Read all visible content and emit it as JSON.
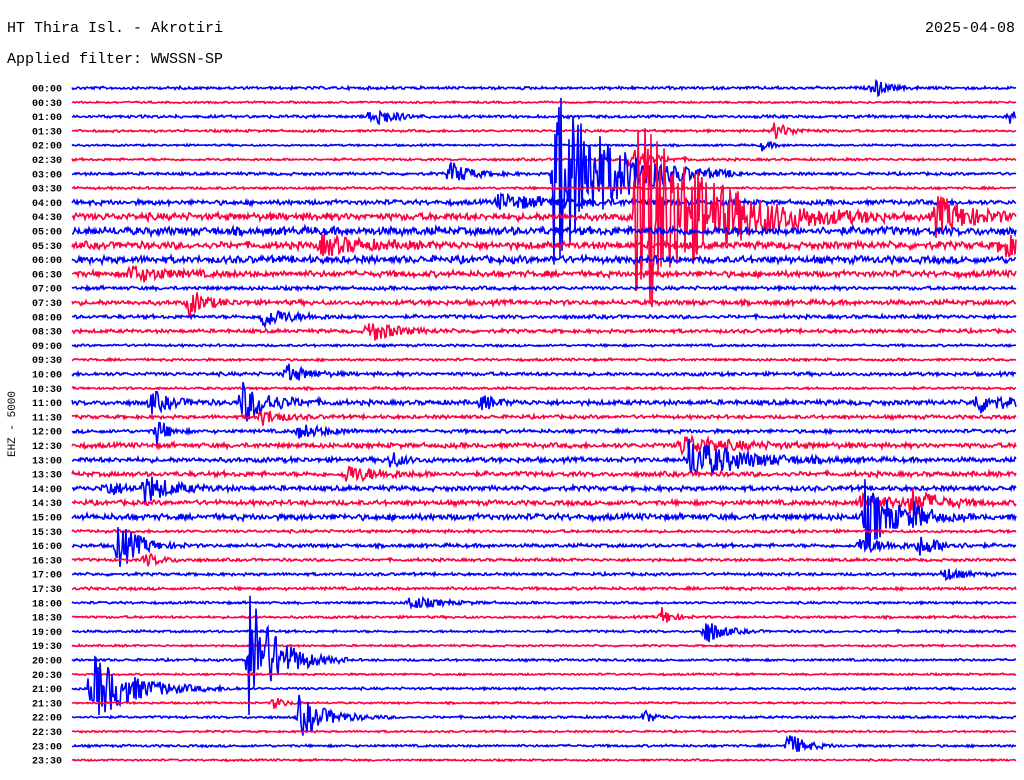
{
  "header": {
    "station": "HT Thira Isl. - Akrotiri",
    "date": "2025-04-08",
    "filter": "Applied filter: WWSSN-SP"
  },
  "chart_data": {
    "type": "line",
    "title": "HT Thira Isl. - Akrotiri",
    "ylabel": "EHZ - 5000",
    "minutes_per_trace": 30,
    "colors": [
      "#0000ff",
      "#ff0040"
    ],
    "trace_labels": [
      "00:00",
      "00:30",
      "01:00",
      "01:30",
      "02:00",
      "02:30",
      "03:00",
      "03:30",
      "04:00",
      "04:30",
      "05:00",
      "05:30",
      "06:00",
      "06:30",
      "07:00",
      "07:30",
      "08:00",
      "08:30",
      "09:00",
      "09:30",
      "10:00",
      "10:30",
      "11:00",
      "11:30",
      "12:00",
      "12:30",
      "13:00",
      "13:30",
      "14:00",
      "14:30",
      "15:00",
      "15:30",
      "16:00",
      "16:30",
      "17:00",
      "17:30",
      "18:00",
      "18:30",
      "19:00",
      "19:30",
      "20:00",
      "20:30",
      "21:00",
      "21:30",
      "22:00",
      "22:30",
      "23:00",
      "23:30"
    ],
    "noise_level": [
      0.12,
      0.08,
      0.12,
      0.1,
      0.08,
      0.1,
      0.12,
      0.1,
      0.2,
      0.3,
      0.35,
      0.3,
      0.3,
      0.25,
      0.15,
      0.2,
      0.15,
      0.15,
      0.1,
      0.1,
      0.15,
      0.1,
      0.2,
      0.15,
      0.15,
      0.2,
      0.2,
      0.2,
      0.2,
      0.2,
      0.25,
      0.12,
      0.15,
      0.12,
      0.12,
      0.12,
      0.1,
      0.1,
      0.1,
      0.08,
      0.1,
      0.08,
      0.1,
      0.08,
      0.1,
      0.08,
      0.1,
      0.08
    ],
    "events": [
      {
        "trace": 0,
        "minute": 25.4,
        "amp": 0.8,
        "dur": 0.4
      },
      {
        "trace": 2,
        "minute": 9.5,
        "amp": 1.0,
        "dur": 0.5
      },
      {
        "trace": 2,
        "minute": 29.8,
        "amp": 0.6,
        "dur": 0.2
      },
      {
        "trace": 3,
        "minute": 22.3,
        "amp": 0.6,
        "dur": 0.5
      },
      {
        "trace": 4,
        "minute": 21.9,
        "amp": 0.4,
        "dur": 0.3
      },
      {
        "trace": 5,
        "minute": 17.7,
        "amp": 1.0,
        "dur": 0.6
      },
      {
        "trace": 6,
        "minute": 12.0,
        "amp": 0.9,
        "dur": 0.6
      },
      {
        "trace": 6,
        "minute": 15.3,
        "amp": 7.0,
        "dur": 1.5
      },
      {
        "trace": 8,
        "minute": 13.5,
        "amp": 0.5,
        "dur": 2.0
      },
      {
        "trace": 9,
        "minute": 17.9,
        "amp": 8.0,
        "dur": 2.0
      },
      {
        "trace": 9,
        "minute": 27.4,
        "amp": 1.5,
        "dur": 1.0
      },
      {
        "trace": 11,
        "minute": 7.9,
        "amp": 0.7,
        "dur": 1.2
      },
      {
        "trace": 11,
        "minute": 29.5,
        "amp": 1.0,
        "dur": 0.6
      },
      {
        "trace": 13,
        "minute": 1.8,
        "amp": 0.6,
        "dur": 1.0
      },
      {
        "trace": 15,
        "minute": 3.7,
        "amp": 1.0,
        "dur": 0.5
      },
      {
        "trace": 16,
        "minute": 6.0,
        "amp": 0.8,
        "dur": 0.8
      },
      {
        "trace": 17,
        "minute": 9.4,
        "amp": 0.8,
        "dur": 0.8
      },
      {
        "trace": 20,
        "minute": 6.8,
        "amp": 0.7,
        "dur": 0.6
      },
      {
        "trace": 22,
        "minute": 2.5,
        "amp": 0.8,
        "dur": 0.6
      },
      {
        "trace": 22,
        "minute": 5.4,
        "amp": 1.5,
        "dur": 0.8
      },
      {
        "trace": 22,
        "minute": 13.0,
        "amp": 0.6,
        "dur": 0.4
      },
      {
        "trace": 22,
        "minute": 28.7,
        "amp": 0.8,
        "dur": 0.8
      },
      {
        "trace": 23,
        "minute": 6.0,
        "amp": 0.6,
        "dur": 0.6
      },
      {
        "trace": 24,
        "minute": 2.7,
        "amp": 1.0,
        "dur": 0.3
      },
      {
        "trace": 24,
        "minute": 7.2,
        "amp": 0.5,
        "dur": 0.8
      },
      {
        "trace": 25,
        "minute": 19.3,
        "amp": 0.7,
        "dur": 1.5
      },
      {
        "trace": 26,
        "minute": 10.1,
        "amp": 0.6,
        "dur": 0.4
      },
      {
        "trace": 26,
        "minute": 19.6,
        "amp": 1.5,
        "dur": 1.5
      },
      {
        "trace": 27,
        "minute": 8.7,
        "amp": 0.6,
        "dur": 1.0
      },
      {
        "trace": 28,
        "minute": 1.0,
        "amp": 0.6,
        "dur": 0.6
      },
      {
        "trace": 28,
        "minute": 2.3,
        "amp": 1.0,
        "dur": 0.8
      },
      {
        "trace": 29,
        "minute": 25.0,
        "amp": 0.6,
        "dur": 1.0
      },
      {
        "trace": 29,
        "minute": 26.6,
        "amp": 1.0,
        "dur": 0.8
      },
      {
        "trace": 30,
        "minute": 25.2,
        "amp": 2.5,
        "dur": 0.8
      },
      {
        "trace": 30,
        "minute": 26.7,
        "amp": 0.7,
        "dur": 0.4
      },
      {
        "trace": 32,
        "minute": 1.4,
        "amp": 2.0,
        "dur": 0.6
      },
      {
        "trace": 32,
        "minute": 25.0,
        "amp": 0.5,
        "dur": 1.0
      },
      {
        "trace": 32,
        "minute": 26.9,
        "amp": 0.7,
        "dur": 0.6
      },
      {
        "trace": 33,
        "minute": 2.3,
        "amp": 0.5,
        "dur": 0.5
      },
      {
        "trace": 34,
        "minute": 27.7,
        "amp": 0.5,
        "dur": 0.5
      },
      {
        "trace": 36,
        "minute": 10.7,
        "amp": 0.5,
        "dur": 0.8
      },
      {
        "trace": 37,
        "minute": 18.7,
        "amp": 0.8,
        "dur": 0.3
      },
      {
        "trace": 38,
        "minute": 20.1,
        "amp": 1.0,
        "dur": 0.5
      },
      {
        "trace": 40,
        "minute": 5.6,
        "amp": 5.0,
        "dur": 0.8
      },
      {
        "trace": 42,
        "minute": 0.6,
        "amp": 2.5,
        "dur": 1.2
      },
      {
        "trace": 43,
        "minute": 6.4,
        "amp": 0.5,
        "dur": 0.3
      },
      {
        "trace": 44,
        "minute": 7.2,
        "amp": 1.5,
        "dur": 0.8
      },
      {
        "trace": 44,
        "minute": 18.2,
        "amp": 0.5,
        "dur": 0.3
      },
      {
        "trace": 46,
        "minute": 22.7,
        "amp": 1.0,
        "dur": 0.5
      }
    ]
  }
}
